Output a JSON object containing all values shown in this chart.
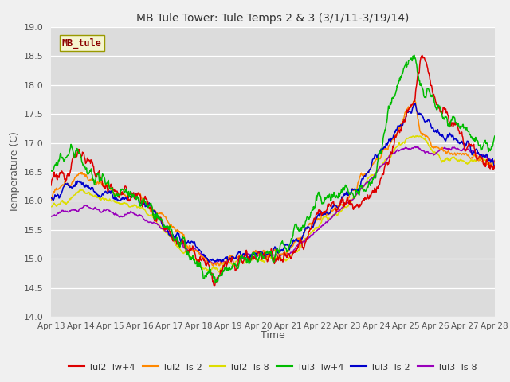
{
  "title": "MB Tule Tower: Tule Temps 2 & 3 (3/1/11-3/19/14)",
  "ylabel": "Temperature (C)",
  "xlabel": "Time",
  "watermark": "MB_tule",
  "xlim": [
    0,
    15
  ],
  "ylim": [
    14.0,
    19.0
  ],
  "yticks": [
    14.0,
    14.5,
    15.0,
    15.5,
    16.0,
    16.5,
    17.0,
    17.5,
    18.0,
    18.5,
    19.0
  ],
  "xtick_labels": [
    "Apr 13",
    "Apr 14",
    "Apr 15",
    "Apr 16",
    "Apr 17",
    "Apr 18",
    "Apr 19",
    "Apr 20",
    "Apr 21",
    "Apr 22",
    "Apr 23",
    "Apr 24",
    "Apr 25",
    "Apr 26",
    "Apr 27",
    "Apr 28"
  ],
  "plot_bg": "#dcdcdc",
  "fig_bg": "#f0f0f0",
  "grid_color": "#ffffff",
  "series": [
    {
      "name": "Tul2_Tw+4",
      "color": "#dd0000"
    },
    {
      "name": "Tul2_Ts-2",
      "color": "#ff8800"
    },
    {
      "name": "Tul2_Ts-8",
      "color": "#dddd00"
    },
    {
      "name": "Tul3_Tw+4",
      "color": "#00bb00"
    },
    {
      "name": "Tul3_Ts-2",
      "color": "#0000cc"
    },
    {
      "name": "Tul3_Ts-8",
      "color": "#9900bb"
    }
  ],
  "title_fontsize": 10,
  "axis_label_fontsize": 9,
  "tick_fontsize": 8,
  "legend_fontsize": 8
}
